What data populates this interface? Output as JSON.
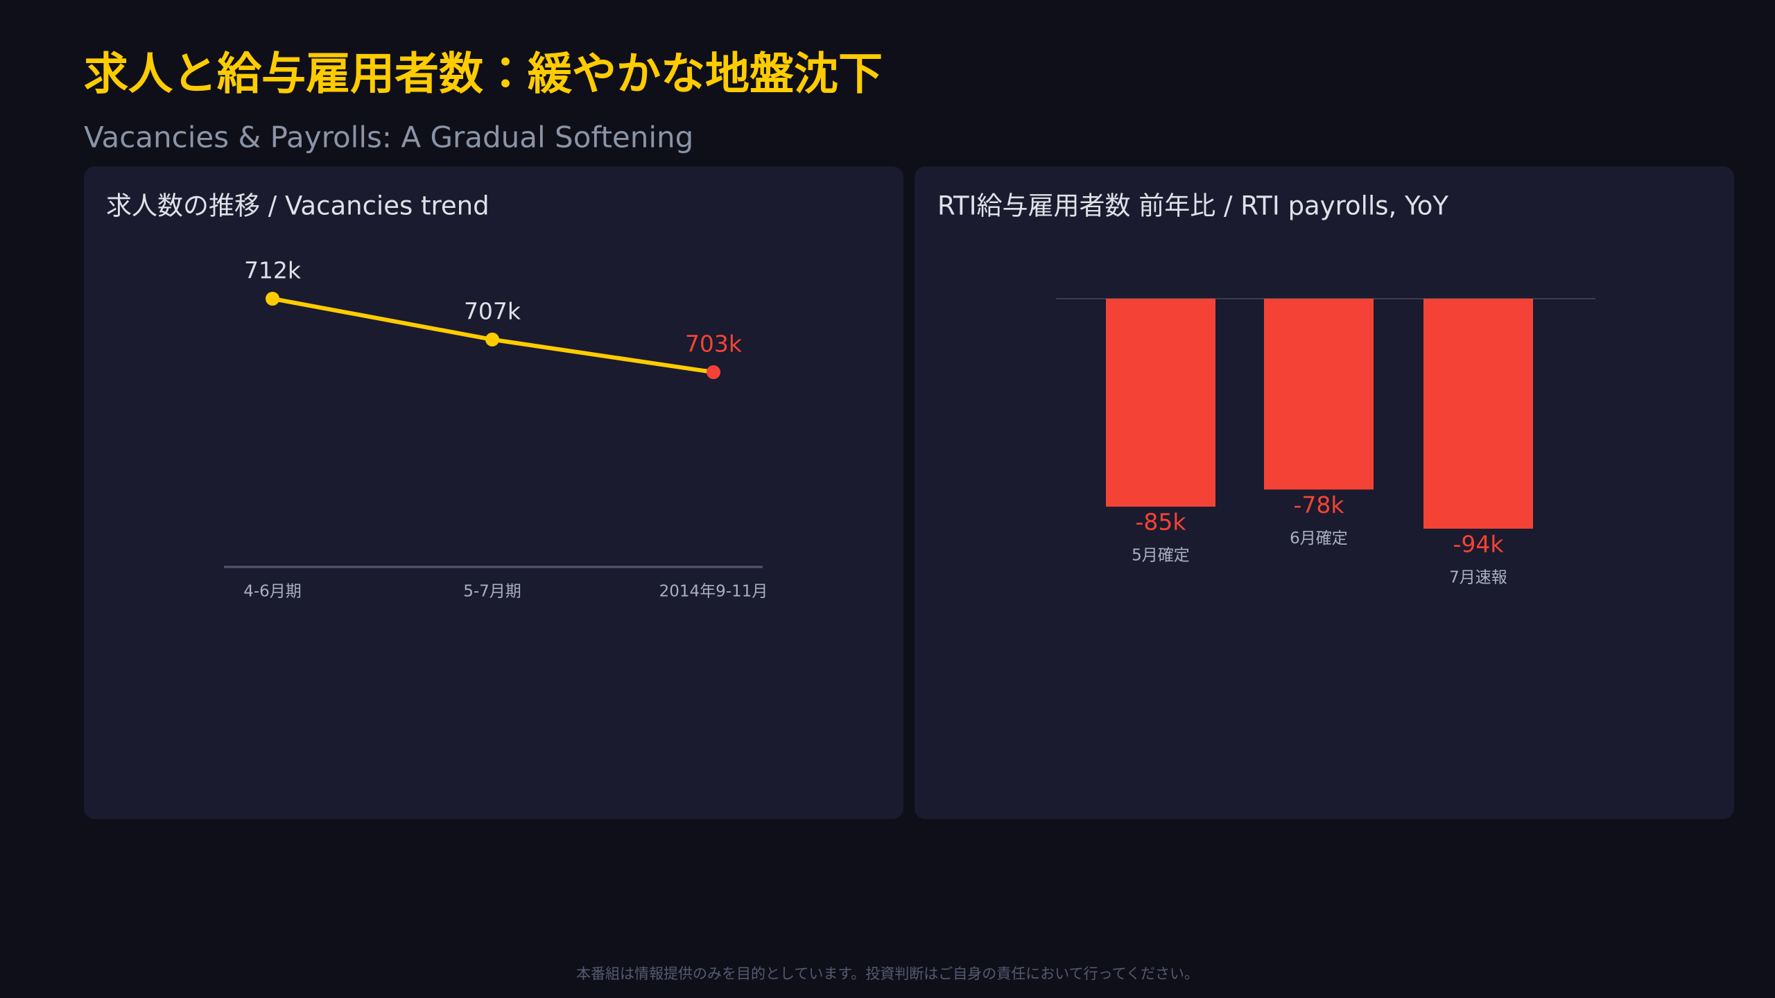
{
  "header": {
    "title": "求人と給与雇用者数：緩やかな地盤沈下",
    "subtitle": "Vacancies & Payrolls: A Gradual Softening"
  },
  "chart_data": [
    {
      "type": "line",
      "title": "求人数の推移 / Vacancies trend",
      "categories": [
        "4-6月期",
        "5-7月期",
        "2014年9-11月"
      ],
      "values": [
        712000,
        707000,
        703000
      ],
      "value_labels": [
        "712k",
        "707k",
        "703k"
      ],
      "color": "#ffcc00",
      "point_colors": [
        "#ffcc00",
        "#ffcc00",
        "#f44336"
      ]
    },
    {
      "type": "bar",
      "title": "RTI給与雇用者数 前年比 / RTI payrolls, YoY",
      "categories": [
        "5月確定",
        "6月確定",
        "7月速報"
      ],
      "values": [
        -85000,
        -78000,
        -94000
      ],
      "value_labels": [
        "-85k",
        "-78k",
        "-94k"
      ],
      "color": "#f44336"
    }
  ],
  "footer": "本番組は情報提供のみを目的としています。投資判断はご自身の責任において行ってください。"
}
